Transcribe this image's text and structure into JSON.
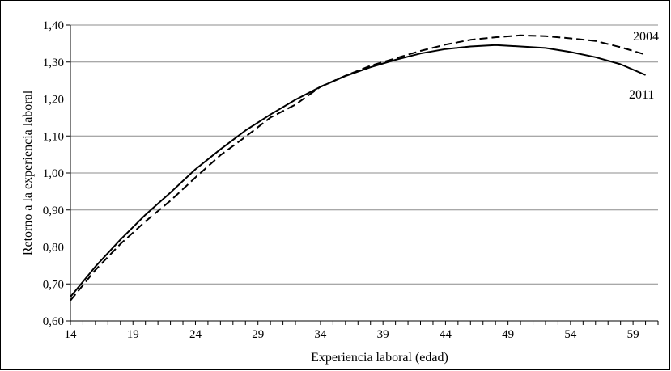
{
  "chart_data": {
    "type": "line",
    "title": "",
    "xlabel": "Experiencia laboral (edad)",
    "ylabel": "Retorno a la experiencia laboral",
    "xlim": [
      14,
      61
    ],
    "ylim": [
      0.6,
      1.4
    ],
    "x_ticks": [
      14,
      19,
      24,
      29,
      34,
      39,
      44,
      49,
      54,
      59
    ],
    "x_tick_labels": [
      "14",
      "19",
      "24",
      "29",
      "34",
      "39",
      "44",
      "49",
      "54",
      "59"
    ],
    "y_ticks": [
      0.6,
      0.7,
      0.8,
      0.9,
      1.0,
      1.1,
      1.2,
      1.3,
      1.4
    ],
    "y_tick_labels": [
      "0,60",
      "0,70",
      "0,80",
      "0,90",
      "1,00",
      "1,10",
      "1,20",
      "1,30",
      "1,40"
    ],
    "grid": "horizontal",
    "legend": "none",
    "series": [
      {
        "name": "2004",
        "style": "dashed",
        "color": "#000000",
        "x": [
          14,
          16,
          18,
          20,
          22,
          24,
          26,
          28,
          30,
          32,
          34,
          36,
          38,
          40,
          42,
          44,
          46,
          48,
          50,
          52,
          54,
          56,
          58,
          60
        ],
        "y": [
          0.655,
          0.738,
          0.808,
          0.869,
          0.925,
          0.988,
          1.048,
          1.098,
          1.15,
          1.185,
          1.233,
          1.263,
          1.29,
          1.31,
          1.33,
          1.347,
          1.36,
          1.367,
          1.372,
          1.37,
          1.364,
          1.357,
          1.34,
          1.32
        ]
      },
      {
        "name": "2011",
        "style": "solid",
        "color": "#000000",
        "x": [
          14,
          16,
          18,
          20,
          22,
          24,
          26,
          28,
          30,
          32,
          34,
          36,
          38,
          40,
          42,
          44,
          46,
          48,
          50,
          52,
          54,
          56,
          58,
          60
        ],
        "y": [
          0.665,
          0.747,
          0.82,
          0.887,
          0.947,
          1.01,
          1.064,
          1.115,
          1.158,
          1.198,
          1.233,
          1.262,
          1.286,
          1.306,
          1.323,
          1.335,
          1.342,
          1.346,
          1.342,
          1.338,
          1.327,
          1.313,
          1.294,
          1.265
        ]
      }
    ]
  }
}
